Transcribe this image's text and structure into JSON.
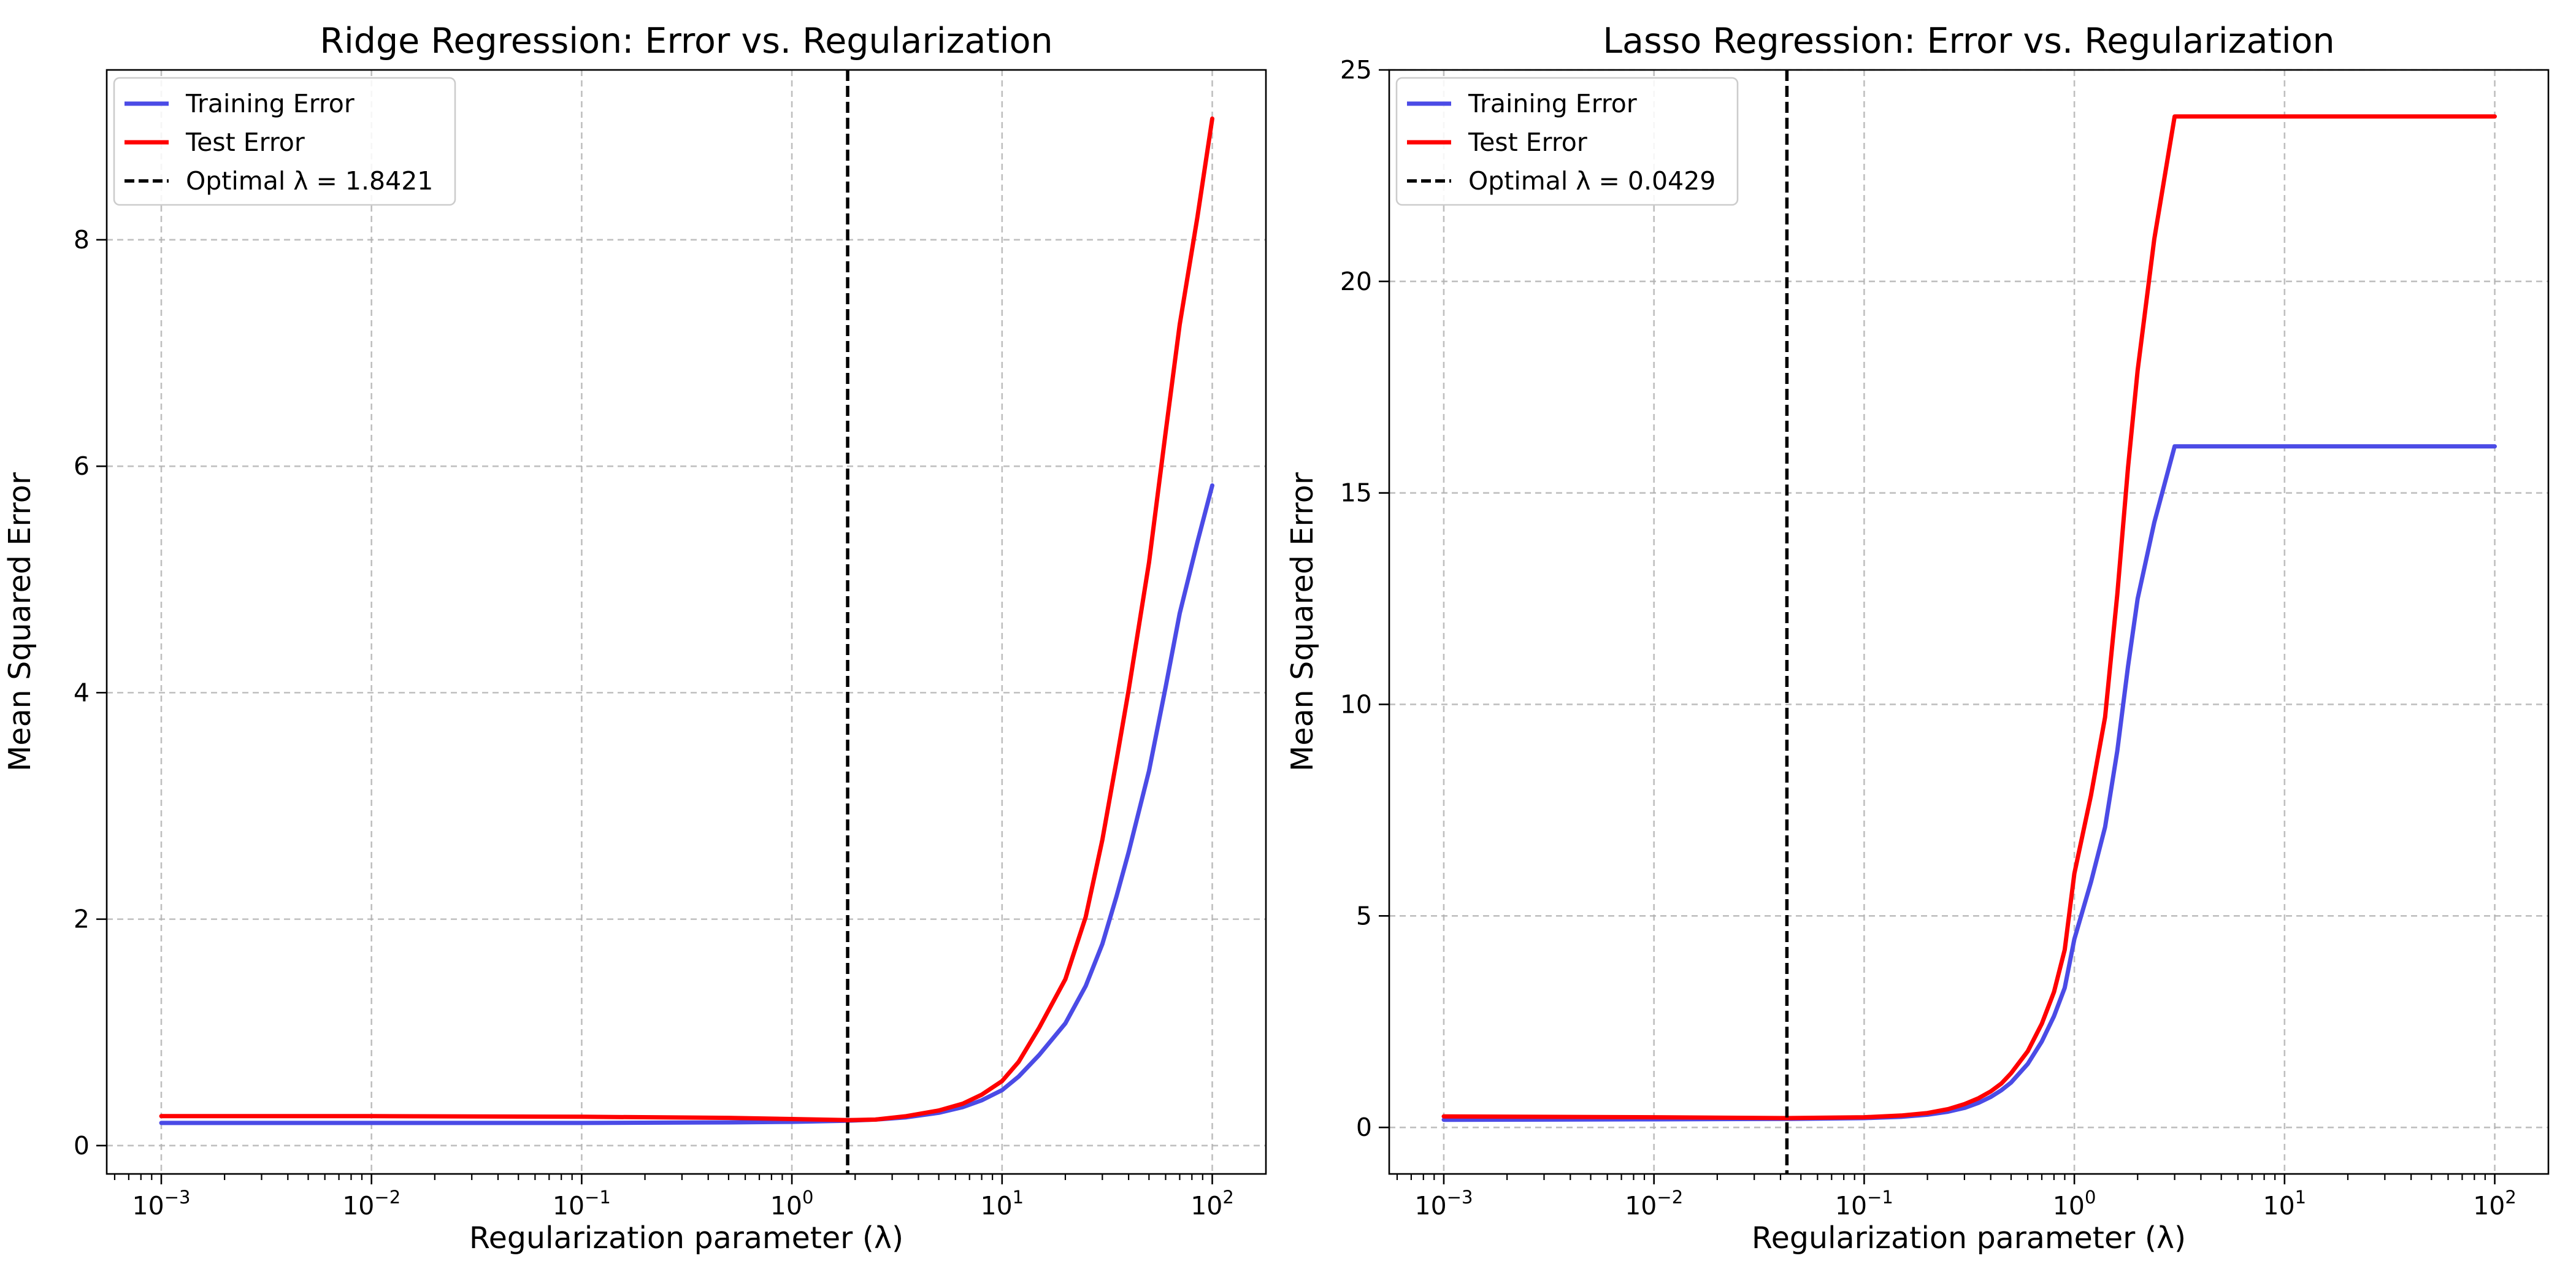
{
  "colors": {
    "training": "#4b4be6",
    "test": "#ff0000",
    "optimal": "#000000",
    "grid": "#b0b0b0"
  },
  "chart_data": [
    {
      "type": "line",
      "title": "Ridge Regression: Error vs. Regularization",
      "xlabel": "Regularization parameter (λ)",
      "ylabel": "Mean Squared Error",
      "xscale": "log",
      "xlim": [
        0.00055,
        180
      ],
      "ylim": [
        -0.25,
        9.5
      ],
      "xticks": [
        0.001,
        0.01,
        0.1,
        1,
        10,
        100
      ],
      "xtick_labels": [
        {
          "base": "10",
          "exp": "−3"
        },
        {
          "base": "10",
          "exp": "−2"
        },
        {
          "base": "10",
          "exp": "−1"
        },
        {
          "base": "10",
          "exp": "0"
        },
        {
          "base": "10",
          "exp": "1"
        },
        {
          "base": "10",
          "exp": "2"
        }
      ],
      "yticks": [
        0,
        2,
        4,
        6,
        8
      ],
      "ytick_labels": [
        "0",
        "2",
        "4",
        "6",
        "8"
      ],
      "grid": true,
      "legend": "upper left",
      "legend_entries": [
        "Training Error",
        "Test Error",
        "Optimal λ = 1.8421"
      ],
      "optimal_lambda": 1.8421,
      "x": [
        0.001,
        0.01,
        0.1,
        0.5,
        1,
        1.8421,
        2.5,
        3.5,
        5,
        6.5,
        8,
        10,
        12,
        15,
        20,
        25,
        30,
        35,
        40,
        50,
        60,
        70,
        85,
        100
      ],
      "series": [
        {
          "name": "Training Error",
          "values": [
            0.2,
            0.2,
            0.2,
            0.205,
            0.21,
            0.22,
            0.23,
            0.25,
            0.29,
            0.34,
            0.4,
            0.49,
            0.61,
            0.8,
            1.08,
            1.41,
            1.78,
            2.2,
            2.59,
            3.31,
            4.05,
            4.7,
            5.33,
            5.83
          ]
        },
        {
          "name": "Test Error",
          "values": [
            0.26,
            0.26,
            0.255,
            0.245,
            0.235,
            0.225,
            0.23,
            0.26,
            0.31,
            0.37,
            0.45,
            0.57,
            0.74,
            1.04,
            1.47,
            2.02,
            2.7,
            3.4,
            4.02,
            5.15,
            6.3,
            7.25,
            8.2,
            9.07
          ]
        }
      ]
    },
    {
      "type": "line",
      "title": "Lasso Regression: Error vs. Regularization",
      "xlabel": "Regularization parameter (λ)",
      "ylabel": "Mean Squared Error",
      "xscale": "log",
      "xlim": [
        0.00055,
        180
      ],
      "ylim": [
        -1.1,
        25
      ],
      "xticks": [
        0.001,
        0.01,
        0.1,
        1,
        10,
        100
      ],
      "xtick_labels": [
        {
          "base": "10",
          "exp": "−3"
        },
        {
          "base": "10",
          "exp": "−2"
        },
        {
          "base": "10",
          "exp": "−1"
        },
        {
          "base": "10",
          "exp": "0"
        },
        {
          "base": "10",
          "exp": "1"
        },
        {
          "base": "10",
          "exp": "2"
        }
      ],
      "yticks": [
        0,
        5,
        10,
        15,
        20,
        25
      ],
      "ytick_labels": [
        "0",
        "5",
        "10",
        "15",
        "20",
        "25"
      ],
      "grid": true,
      "legend": "upper left",
      "legend_entries": [
        "Training Error",
        "Test Error",
        "Optimal λ = 0.0429"
      ],
      "optimal_lambda": 0.0429,
      "x": [
        0.001,
        0.01,
        0.0429,
        0.1,
        0.15,
        0.2,
        0.25,
        0.3,
        0.35,
        0.4,
        0.45,
        0.5,
        0.6,
        0.7,
        0.8,
        0.9,
        1.0,
        1.2,
        1.4,
        1.6,
        1.8,
        2.0,
        2.4,
        3.0,
        10,
        100
      ],
      "series": [
        {
          "name": "Training Error",
          "values": [
            0.18,
            0.19,
            0.2,
            0.22,
            0.25,
            0.3,
            0.37,
            0.46,
            0.58,
            0.72,
            0.88,
            1.06,
            1.5,
            2.03,
            2.63,
            3.3,
            4.45,
            5.8,
            7.1,
            8.9,
            10.9,
            12.5,
            14.3,
            16.1,
            16.1,
            16.1
          ]
        },
        {
          "name": "Test Error",
          "values": [
            0.26,
            0.24,
            0.22,
            0.24,
            0.28,
            0.34,
            0.43,
            0.55,
            0.69,
            0.85,
            1.04,
            1.28,
            1.8,
            2.45,
            3.2,
            4.2,
            6.0,
            7.85,
            9.7,
            12.6,
            15.6,
            17.9,
            21.0,
            23.9,
            23.9,
            23.9
          ]
        }
      ]
    }
  ]
}
